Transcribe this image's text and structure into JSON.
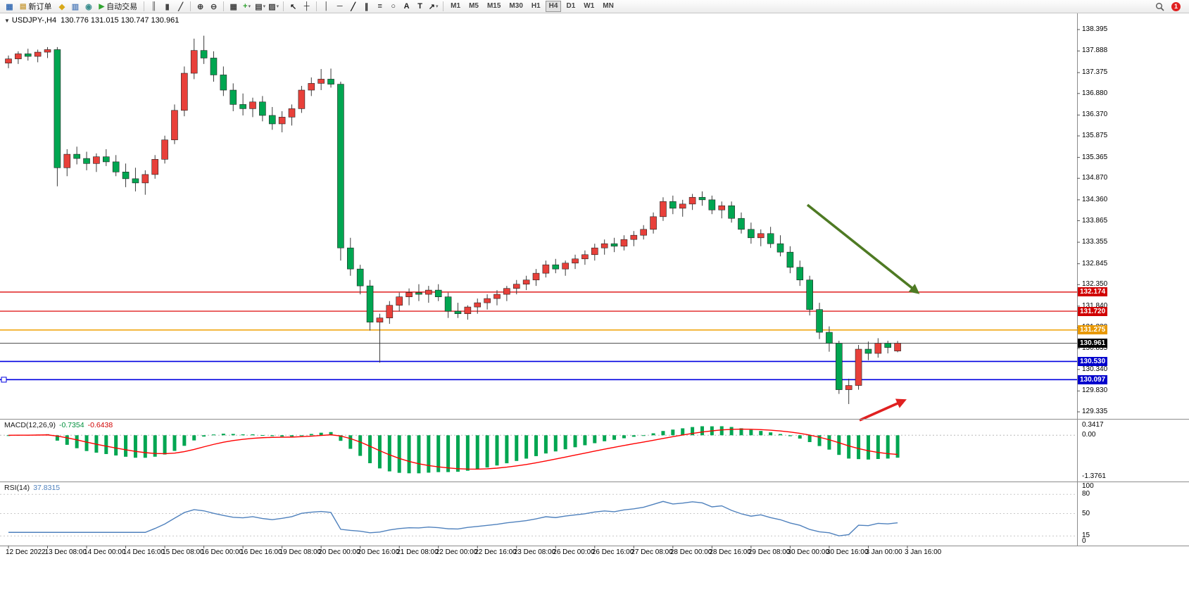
{
  "toolbar": {
    "items": [
      {
        "t": "icon",
        "name": "chart-window-icon",
        "glyph": "▦",
        "color": "#3b6fb5"
      },
      {
        "t": "btn",
        "name": "new-order-button",
        "label": "新订单",
        "glyph": "▤",
        "gcolor": "#c99d3c"
      },
      {
        "t": "icon",
        "name": "expert-advisors-icon",
        "glyph": "◆",
        "color": "#d8a818"
      },
      {
        "t": "icon",
        "name": "print-icon",
        "glyph": "▥",
        "color": "#5b84bd"
      },
      {
        "t": "icon",
        "name": "refresh-icon",
        "glyph": "◉",
        "color": "#3d8f8f"
      },
      {
        "t": "btn",
        "name": "autotrade-button",
        "label": "自动交易",
        "glyph": "▶",
        "gcolor": "#2fa32f"
      },
      {
        "t": "sep"
      },
      {
        "t": "icon",
        "name": "bar-chart-icon",
        "glyph": "║",
        "color": "#444444"
      },
      {
        "t": "icon",
        "name": "candlestick-chart-icon",
        "glyph": "▮",
        "color": "#444444"
      },
      {
        "t": "icon",
        "name": "line-chart-icon",
        "glyph": "╱",
        "color": "#444444"
      },
      {
        "t": "sep"
      },
      {
        "t": "icon",
        "name": "zoom-in-icon",
        "glyph": "⊕",
        "color": "#444444"
      },
      {
        "t": "icon",
        "name": "zoom-out-icon",
        "glyph": "⊖",
        "color": "#444444"
      },
      {
        "t": "sep"
      },
      {
        "t": "icon",
        "name": "tile-windows-icon",
        "glyph": "▦",
        "color": "#444444"
      },
      {
        "t": "icon",
        "name": "indicators-icon",
        "glyph": "+",
        "color": "#2fa32f",
        "caret": true
      },
      {
        "t": "icon",
        "name": "periods-icon",
        "glyph": "▤",
        "color": "#444444",
        "caret": true
      },
      {
        "t": "icon",
        "name": "templates-icon",
        "glyph": "▨",
        "color": "#444444",
        "caret": true
      },
      {
        "t": "sep"
      },
      {
        "t": "icon",
        "name": "cursor-icon",
        "glyph": "↖",
        "color": "#222222"
      },
      {
        "t": "icon",
        "name": "crosshair-icon",
        "glyph": "┼",
        "color": "#222222"
      },
      {
        "t": "sep"
      },
      {
        "t": "icon",
        "name": "vertical-line-icon",
        "glyph": "│",
        "color": "#222222"
      },
      {
        "t": "icon",
        "name": "horizontal-line-icon",
        "glyph": "─",
        "color": "#222222"
      },
      {
        "t": "icon",
        "name": "trendline-icon",
        "glyph": "╱",
        "color": "#222222"
      },
      {
        "t": "icon",
        "name": "equidistant-channel-icon",
        "glyph": "∥",
        "color": "#222222"
      },
      {
        "t": "icon",
        "name": "fibonacci-icon",
        "glyph": "≡",
        "color": "#222222"
      },
      {
        "t": "icon",
        "name": "shapes-icon",
        "glyph": "○",
        "color": "#222222"
      },
      {
        "t": "icon",
        "name": "text-icon",
        "glyph": "A",
        "color": "#222222"
      },
      {
        "t": "icon",
        "name": "text-label-icon",
        "glyph": "T",
        "color": "#222222"
      },
      {
        "t": "icon",
        "name": "arrows-tool-icon",
        "glyph": "↗",
        "color": "#222222",
        "caret": true
      },
      {
        "t": "sep"
      }
    ],
    "timeframes": [
      "M1",
      "M5",
      "M15",
      "M30",
      "H1",
      "H4",
      "D1",
      "W1",
      "MN"
    ],
    "active_timeframe": "H4",
    "notification_count": "1"
  },
  "chart": {
    "menu_glyph": "▼",
    "title": "USDJPY-,H4",
    "ohlc": "130.776 131.015 130.747 130.961"
  },
  "colors": {
    "bull": "#e8403a",
    "bear": "#00a651",
    "wick": "#3a3a3a",
    "macd_hist": "#00a651",
    "macd_signal": "#ff0000",
    "rsi_line": "#4f81bd",
    "separator": "#8c8c8c",
    "axis_text": "#111111"
  },
  "chart_data": {
    "type": "candlestick",
    "symbol": "USDJPY-",
    "timeframe": "H4",
    "current_ohlc": [
      130.776,
      131.015,
      130.747,
      130.961
    ],
    "candles": [
      [
        137.6,
        137.78,
        137.48,
        137.7
      ],
      [
        137.7,
        137.88,
        137.58,
        137.82
      ],
      [
        137.82,
        137.94,
        137.66,
        137.76
      ],
      [
        137.76,
        137.92,
        137.62,
        137.86
      ],
      [
        137.86,
        137.98,
        137.72,
        137.92
      ],
      [
        137.92,
        137.98,
        134.68,
        135.12
      ],
      [
        135.12,
        135.56,
        134.92,
        135.44
      ],
      [
        135.44,
        135.62,
        135.2,
        135.34
      ],
      [
        135.34,
        135.5,
        135.06,
        135.22
      ],
      [
        135.22,
        135.46,
        135.02,
        135.38
      ],
      [
        135.38,
        135.56,
        135.16,
        135.26
      ],
      [
        135.26,
        135.42,
        134.92,
        135.02
      ],
      [
        135.02,
        135.22,
        134.66,
        134.86
      ],
      [
        134.86,
        135.12,
        134.56,
        134.76
      ],
      [
        134.76,
        135.06,
        134.48,
        134.96
      ],
      [
        134.96,
        135.42,
        134.86,
        135.32
      ],
      [
        135.32,
        135.88,
        135.22,
        135.78
      ],
      [
        135.78,
        136.62,
        135.68,
        136.48
      ],
      [
        136.48,
        137.52,
        136.34,
        137.36
      ],
      [
        137.36,
        138.18,
        137.22,
        137.9
      ],
      [
        137.9,
        138.25,
        137.58,
        137.72
      ],
      [
        137.72,
        137.88,
        137.16,
        137.32
      ],
      [
        137.32,
        137.52,
        136.82,
        136.96
      ],
      [
        136.96,
        137.12,
        136.46,
        136.62
      ],
      [
        136.62,
        136.88,
        136.36,
        136.52
      ],
      [
        136.52,
        136.78,
        136.32,
        136.68
      ],
      [
        136.68,
        136.82,
        136.22,
        136.36
      ],
      [
        136.36,
        136.56,
        136.02,
        136.16
      ],
      [
        136.16,
        136.46,
        135.96,
        136.32
      ],
      [
        136.32,
        136.62,
        136.12,
        136.52
      ],
      [
        136.52,
        137.06,
        136.42,
        136.96
      ],
      [
        136.96,
        137.26,
        136.82,
        137.12
      ],
      [
        137.12,
        137.46,
        136.96,
        137.22
      ],
      [
        137.22,
        137.47,
        137.02,
        137.1
      ],
      [
        137.1,
        137.16,
        132.92,
        133.22
      ],
      [
        133.22,
        133.46,
        132.56,
        132.72
      ],
      [
        132.72,
        132.82,
        132.12,
        132.32
      ],
      [
        132.32,
        132.46,
        131.26,
        131.46
      ],
      [
        131.46,
        131.66,
        130.5,
        131.56
      ],
      [
        131.56,
        131.96,
        131.42,
        131.86
      ],
      [
        131.86,
        132.16,
        131.72,
        132.06
      ],
      [
        132.06,
        132.26,
        131.86,
        132.16
      ],
      [
        132.16,
        132.36,
        131.96,
        132.12
      ],
      [
        132.12,
        132.32,
        131.92,
        132.22
      ],
      [
        132.22,
        132.36,
        131.96,
        132.06
      ],
      [
        132.06,
        132.16,
        131.56,
        131.72
      ],
      [
        131.72,
        131.92,
        131.56,
        131.66
      ],
      [
        131.66,
        131.86,
        131.52,
        131.82
      ],
      [
        131.82,
        132.02,
        131.66,
        131.92
      ],
      [
        131.92,
        132.12,
        131.76,
        132.02
      ],
      [
        132.02,
        132.22,
        131.86,
        132.12
      ],
      [
        132.12,
        132.32,
        131.96,
        132.26
      ],
      [
        132.26,
        132.46,
        132.12,
        132.36
      ],
      [
        132.36,
        132.56,
        132.22,
        132.46
      ],
      [
        132.46,
        132.72,
        132.32,
        132.62
      ],
      [
        132.62,
        132.92,
        132.52,
        132.82
      ],
      [
        132.82,
        132.96,
        132.62,
        132.72
      ],
      [
        132.72,
        132.92,
        132.56,
        132.86
      ],
      [
        132.86,
        133.06,
        132.72,
        132.96
      ],
      [
        132.96,
        133.16,
        132.82,
        133.06
      ],
      [
        133.06,
        133.32,
        132.92,
        133.22
      ],
      [
        133.22,
        133.42,
        133.06,
        133.32
      ],
      [
        133.32,
        133.46,
        133.12,
        133.26
      ],
      [
        133.26,
        133.52,
        133.16,
        133.42
      ],
      [
        133.42,
        133.62,
        133.26,
        133.52
      ],
      [
        133.52,
        133.76,
        133.42,
        133.66
      ],
      [
        133.66,
        134.06,
        133.56,
        133.96
      ],
      [
        133.96,
        134.42,
        133.86,
        134.32
      ],
      [
        134.32,
        134.46,
        134.02,
        134.16
      ],
      [
        134.16,
        134.36,
        133.96,
        134.26
      ],
      [
        134.26,
        134.5,
        134.12,
        134.42
      ],
      [
        134.42,
        134.56,
        134.22,
        134.36
      ],
      [
        134.36,
        134.46,
        134.02,
        134.12
      ],
      [
        134.12,
        134.32,
        133.92,
        134.22
      ],
      [
        134.22,
        134.32,
        133.82,
        133.92
      ],
      [
        133.92,
        134.06,
        133.56,
        133.66
      ],
      [
        133.66,
        133.82,
        133.32,
        133.46
      ],
      [
        133.46,
        133.66,
        133.26,
        133.56
      ],
      [
        133.56,
        133.72,
        133.22,
        133.32
      ],
      [
        133.32,
        133.52,
        133.02,
        133.12
      ],
      [
        133.12,
        133.26,
        132.62,
        132.76
      ],
      [
        132.76,
        132.92,
        132.32,
        132.46
      ],
      [
        132.46,
        132.56,
        131.62,
        131.76
      ],
      [
        131.76,
        131.92,
        131.06,
        131.22
      ],
      [
        131.22,
        131.36,
        130.76,
        130.96
      ],
      [
        130.96,
        131.02,
        129.76,
        129.86
      ],
      [
        129.86,
        130.12,
        129.52,
        129.96
      ],
      [
        129.96,
        130.92,
        129.86,
        130.82
      ],
      [
        130.82,
        131.0,
        130.56,
        130.72
      ],
      [
        130.72,
        131.08,
        130.62,
        130.96
      ],
      [
        130.96,
        131.02,
        130.72,
        130.86
      ],
      [
        130.776,
        131.015,
        130.747,
        130.961
      ]
    ],
    "time_labels": [
      "12 Dec 2022",
      "13 Dec 08:00",
      "14 Dec 00:00",
      "14 Dec 16:00",
      "15 Dec 08:00",
      "16 Dec 00:00",
      "16 Dec 16:00",
      "19 Dec 08:00",
      "20 Dec 00:00",
      "20 Dec 16:00",
      "21 Dec 08:00",
      "22 Dec 00:00",
      "22 Dec 16:00",
      "23 Dec 08:00",
      "26 Dec 00:00",
      "26 Dec 16:00",
      "27 Dec 08:00",
      "28 Dec 00:00",
      "28 Dec 16:00",
      "29 Dec 08:00",
      "30 Dec 00:00",
      "30 Dec 16:00",
      "3 Jan 00:00",
      "3 Jan 16:00"
    ],
    "price_axis_labels": [
      138.395,
      137.888,
      137.375,
      136.88,
      136.37,
      135.875,
      135.365,
      134.87,
      134.36,
      133.865,
      133.355,
      132.845,
      132.35,
      131.84,
      131.33,
      130.835,
      130.34,
      129.83,
      129.335
    ],
    "hlines": [
      {
        "price": 132.174,
        "label": "132.174",
        "color": "#e02020",
        "badge": "#d00000",
        "width": 1.4,
        "name": "resistance-line-upper"
      },
      {
        "price": 131.72,
        "label": "131.720",
        "color": "#e02020",
        "badge": "#d00000",
        "width": 1.4,
        "name": "resistance-line-lower"
      },
      {
        "price": 131.275,
        "label": "131.275",
        "color": "#f0a000",
        "badge": "#e89800",
        "width": 1.6,
        "name": "pivot-line"
      },
      {
        "price": 130.961,
        "label": "130.961",
        "color": "#4a4a4a",
        "badge": "#000000",
        "width": 1,
        "name": "current-price-line"
      },
      {
        "price": 130.53,
        "label": "130.530",
        "color": "#0000e0",
        "badge": "#0000cc",
        "width": 1.6,
        "name": "support-line-upper"
      },
      {
        "price": 130.097,
        "label": "130.097",
        "color": "#0000e0",
        "badge": "#0000cc",
        "width": 1.6,
        "name": "support-line-lower",
        "handles": true
      }
    ],
    "indicators": {
      "macd": {
        "label": "MACD(12,26,9)",
        "value_main": "-0.7354",
        "value_signal": "-0.6438",
        "fast": 12,
        "slow": 26,
        "signal_period": 9,
        "axis_labels": [
          "0.3417",
          "0.00",
          "-1.3761"
        ],
        "range": [
          -1.55,
          0.55
        ]
      },
      "rsi": {
        "label": "RSI(14)",
        "value": "37.8315",
        "period": 14,
        "axis_labels": [
          100,
          80,
          50,
          15,
          0
        ],
        "levels": [
          80,
          50,
          15
        ]
      }
    },
    "annotations": [
      {
        "type": "arrow",
        "name": "downtrend-arrow",
        "color": "#4e7a23",
        "width": 3.6,
        "from": [
          1147,
          291
        ],
        "to": [
          1303,
          415
        ]
      },
      {
        "type": "arrow",
        "name": "reversal-arrow",
        "color": "#e02020",
        "width": 3.6,
        "from": [
          1221,
          597
        ],
        "to": [
          1284,
          569
        ]
      }
    ]
  }
}
